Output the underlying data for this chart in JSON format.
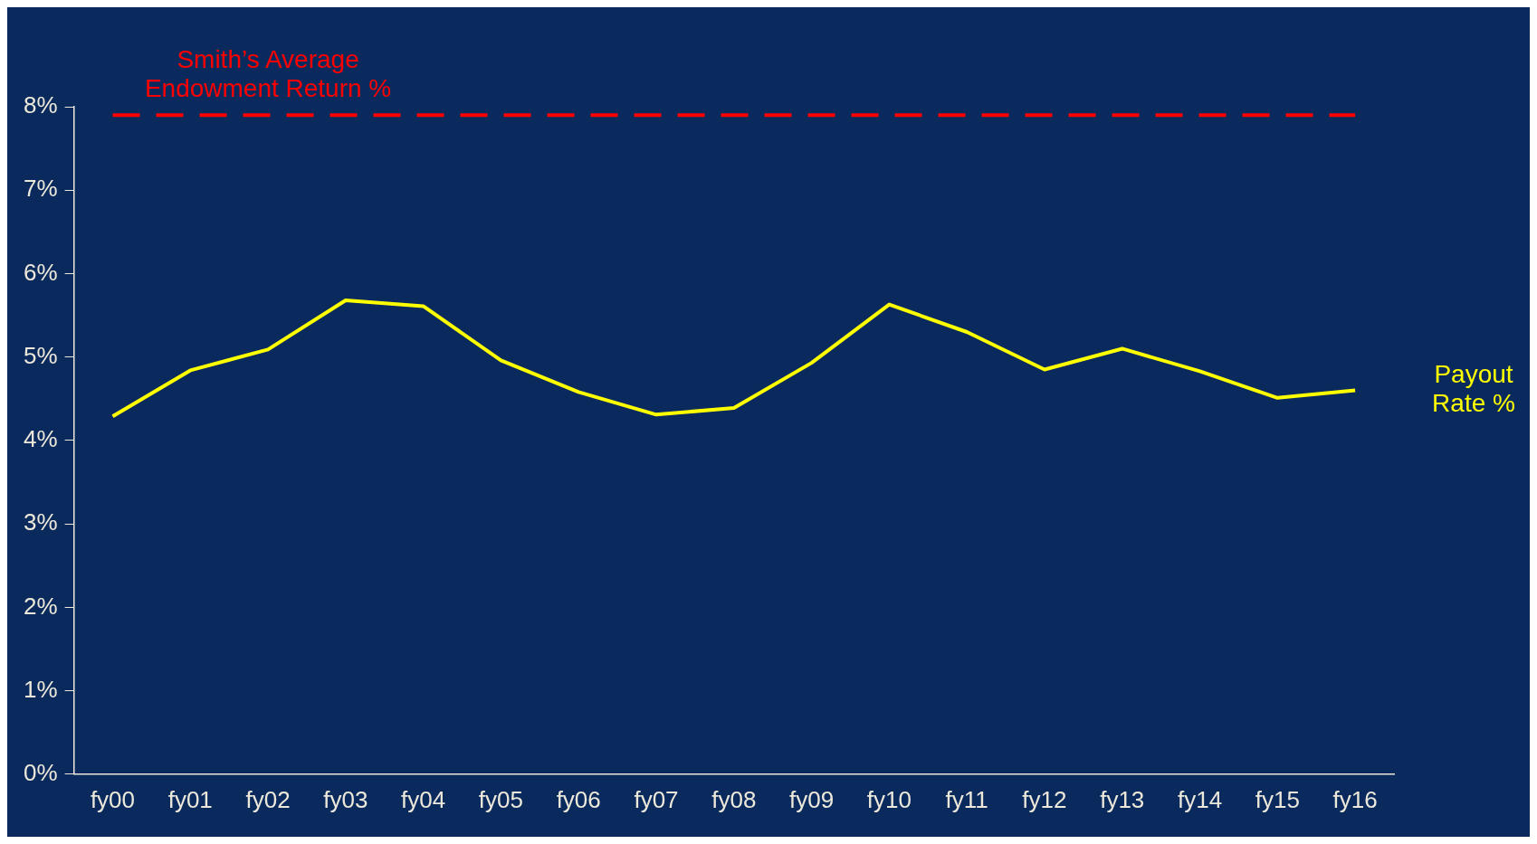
{
  "chart_data": {
    "type": "line",
    "categories": [
      "fy00",
      "fy01",
      "fy02",
      "fy03",
      "fy04",
      "fy05",
      "fy06",
      "fy07",
      "fy08",
      "fy09",
      "fy10",
      "fy11",
      "fy12",
      "fy13",
      "fy14",
      "fy15",
      "fy16"
    ],
    "series": [
      {
        "name": "Payout Rate %",
        "color": "#ffff00",
        "values": [
          4.29,
          4.84,
          5.09,
          5.68,
          5.61,
          4.96,
          4.58,
          4.31,
          4.39,
          4.93,
          5.63,
          5.3,
          4.85,
          5.1,
          4.83,
          4.51,
          4.6
        ]
      }
    ],
    "ylim": [
      0,
      8
    ],
    "yticks": [
      {
        "value": 0,
        "label": "0%"
      },
      {
        "value": 1,
        "label": "1%"
      },
      {
        "value": 2,
        "label": "2%"
      },
      {
        "value": 3,
        "label": "3%"
      },
      {
        "value": 4,
        "label": "4%"
      },
      {
        "value": 5,
        "label": "5%"
      },
      {
        "value": 6,
        "label": "6%"
      },
      {
        "value": 7,
        "label": "7%"
      },
      {
        "value": 8,
        "label": "8%"
      }
    ],
    "ref_lines": [
      {
        "axis": "y",
        "value": 7.9,
        "label": "Smith’s Average Endowment Return %",
        "color": "#ff0000",
        "line_style": "dashed"
      }
    ],
    "grid": false,
    "legend": false,
    "marker": "none",
    "line_style": "solid"
  }
}
